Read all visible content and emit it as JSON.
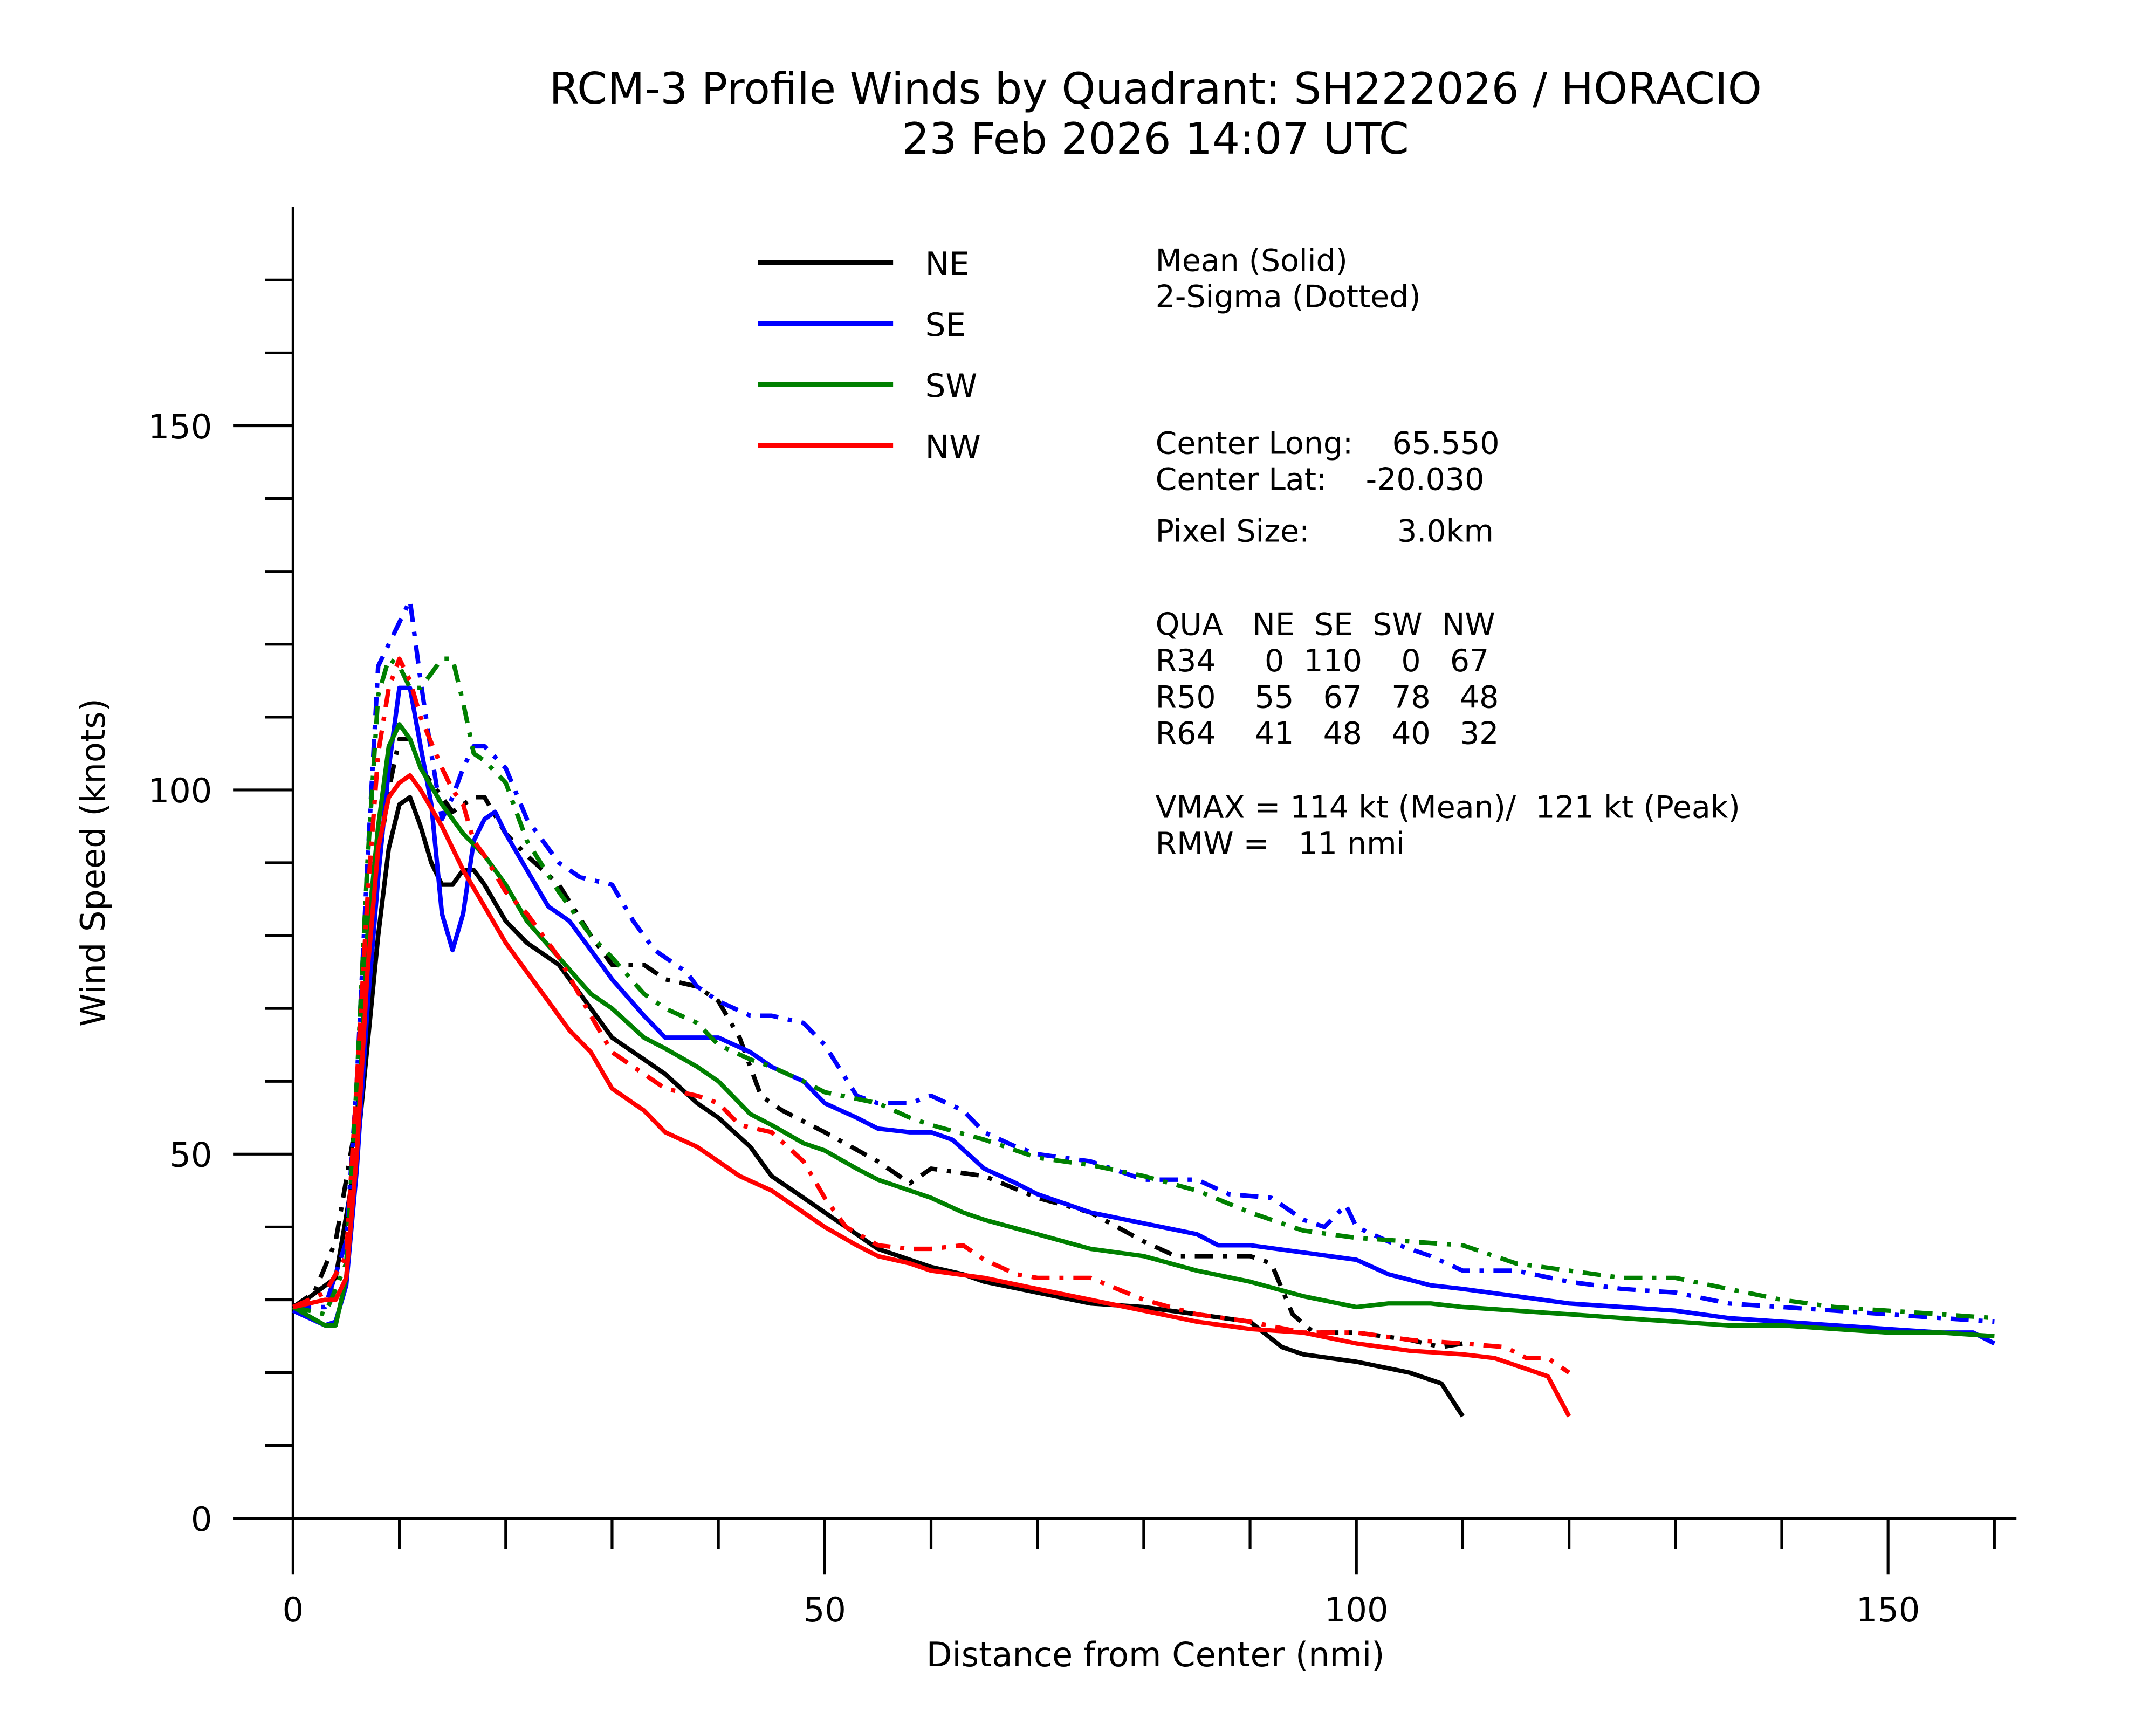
{
  "chart_data": {
    "type": "line",
    "title": "RCM-3 Profile Winds by Quadrant: SH222026 / HORACIO",
    "subtitle": "23 Feb 2026 14:07 UTC",
    "xlabel": "Distance from Center (nmi)",
    "ylabel": "Wind Speed (knots)",
    "xlim": [
      0,
      162
    ],
    "ylim": [
      0,
      180
    ],
    "x_ticks": [
      0,
      50,
      100,
      150
    ],
    "y_ticks": [
      0,
      50,
      100,
      150
    ],
    "grid": false,
    "legend_placement": "top-center",
    "legend_note": [
      "Mean (Solid)",
      "2-Sigma (Dotted)"
    ],
    "series": [
      {
        "name": "NE",
        "style": "mean",
        "color": "#000000",
        "x": [
          0,
          4,
          6,
          8,
          9,
          10,
          11,
          12,
          13,
          14,
          15,
          16,
          17,
          18,
          20,
          22,
          25,
          28,
          30,
          33,
          35,
          38,
          40,
          43,
          45,
          48,
          50,
          53,
          55,
          58,
          60,
          63,
          65,
          70,
          75,
          80,
          85,
          90,
          93,
          95,
          100,
          105,
          108,
          110
        ],
        "y": [
          28.7,
          33,
          50,
          80,
          92,
          98,
          99,
          95,
          90,
          87,
          87,
          89,
          89,
          87,
          82,
          79,
          76,
          70,
          66,
          63,
          61,
          57,
          55,
          51,
          47,
          44,
          42,
          39,
          37,
          35.5,
          34.5,
          33.5,
          32.5,
          31,
          29.5,
          29,
          28,
          27,
          23.5,
          22.5,
          21.5,
          20,
          18.5,
          14
        ]
      },
      {
        "name": "NE",
        "style": "2-sigma",
        "color": "#000000",
        "x": [
          0,
          2,
          4,
          6,
          8,
          9,
          10,
          11,
          12,
          14,
          15,
          17,
          18,
          20,
          22,
          25,
          28,
          30,
          33,
          35,
          38,
          40,
          42,
          44,
          46,
          50,
          55,
          58,
          60,
          65,
          70,
          75,
          80,
          83,
          85,
          90,
          92,
          94,
          96,
          100,
          105,
          108,
          110
        ],
        "y": [
          29,
          31,
          38,
          55,
          90,
          100,
          107,
          107,
          103,
          99,
          97,
          99,
          99,
          94,
          91,
          87,
          80,
          76,
          76,
          74,
          73,
          71,
          66,
          58,
          56,
          53,
          49,
          46,
          48,
          47,
          44,
          42,
          38,
          36,
          36,
          36,
          35,
          28,
          25.5,
          25.5,
          24.5,
          23.5,
          24
        ]
      },
      {
        "name": "SE",
        "style": "mean",
        "color": "#0000ff",
        "x": [
          0,
          3,
          4,
          5,
          6,
          7,
          8,
          9,
          10,
          11,
          12,
          13,
          14,
          15,
          16,
          17,
          18,
          19,
          20,
          22,
          24,
          26,
          28,
          30,
          33,
          35,
          37,
          40,
          43,
          45,
          48,
          50,
          53,
          55,
          58,
          60,
          62,
          65,
          68,
          70,
          75,
          80,
          85,
          87,
          90,
          95,
          100,
          103,
          107,
          110,
          115,
          120,
          125,
          130,
          135,
          140,
          145,
          150,
          155,
          158,
          160
        ],
        "y": [
          28.5,
          26.5,
          27,
          32,
          48,
          70,
          88,
          103,
          114,
          114,
          106,
          98,
          83,
          78,
          83,
          93,
          96,
          97,
          94,
          89,
          84,
          82,
          78,
          74,
          69,
          66,
          66,
          66,
          64,
          62,
          60,
          57,
          55,
          53.5,
          53,
          53,
          52,
          48,
          46,
          44.5,
          42,
          40.5,
          39,
          37.5,
          37.5,
          36.5,
          35.5,
          33.5,
          32,
          31.5,
          30.5,
          29.5,
          29,
          28.5,
          27.5,
          27,
          26.5,
          26,
          25.5,
          25.5,
          24
        ]
      },
      {
        "name": "SE",
        "style": "2-sigma",
        "color": "#0000ff",
        "x": [
          0,
          3,
          5,
          6,
          7,
          8,
          9,
          10,
          11,
          12,
          13,
          14,
          15,
          16,
          17,
          18,
          20,
          22,
          25,
          27,
          30,
          32,
          34,
          37,
          38,
          40,
          43,
          45,
          48,
          50,
          53,
          55,
          58,
          60,
          63,
          65,
          68,
          70,
          75,
          80,
          85,
          88,
          92,
          95,
          97,
          99,
          100,
          103,
          107,
          110,
          115,
          120,
          125,
          130,
          135,
          140,
          145,
          150,
          155,
          160
        ],
        "y": [
          29,
          29,
          38,
          60,
          90,
          117,
          120,
          123,
          126,
          115,
          105,
          96,
          99,
          103,
          106,
          106,
          103,
          96,
          90,
          88,
          87,
          82,
          78,
          75,
          73,
          71,
          69,
          69,
          68,
          65,
          58,
          57,
          57,
          58,
          56,
          53,
          51,
          50,
          49,
          46.5,
          46.5,
          44.5,
          44,
          41,
          40,
          43,
          40,
          38,
          36,
          34,
          34,
          32.5,
          31.5,
          31,
          29.5,
          29,
          28.5,
          28,
          27.5,
          27
        ]
      },
      {
        "name": "SW",
        "style": "mean",
        "color": "#008000",
        "x": [
          0,
          3,
          4,
          5,
          6,
          7,
          8,
          9,
          10,
          11,
          12,
          14,
          16,
          18,
          20,
          22,
          25,
          28,
          30,
          33,
          35,
          38,
          40,
          43,
          45,
          48,
          50,
          53,
          55,
          58,
          60,
          63,
          65,
          70,
          75,
          80,
          85,
          90,
          95,
          100,
          103,
          107,
          110,
          115,
          120,
          125,
          130,
          135,
          140,
          145,
          150,
          155,
          160
        ],
        "y": [
          29,
          26.5,
          26.5,
          33,
          50,
          80,
          95,
          106,
          109,
          107,
          103,
          98,
          94,
          91,
          87,
          82,
          77,
          72,
          70,
          66,
          64.5,
          62,
          60,
          55.5,
          54,
          51.5,
          50.5,
          48,
          46.5,
          45,
          44,
          42,
          41,
          39,
          37,
          36,
          34,
          32.5,
          30.5,
          29,
          29.5,
          29.5,
          29,
          28.5,
          28,
          27.5,
          27,
          26.5,
          26.5,
          26,
          25.5,
          25.5,
          25
        ]
      },
      {
        "name": "SW",
        "style": "2-sigma",
        "color": "#008000",
        "x": [
          0,
          3,
          5,
          6,
          7,
          8,
          9,
          10,
          11,
          12,
          13,
          14,
          15,
          16,
          17,
          18,
          20,
          22,
          25,
          28,
          30,
          33,
          35,
          38,
          40,
          43,
          45,
          48,
          50,
          55,
          58,
          60,
          65,
          70,
          75,
          80,
          85,
          90,
          95,
          100,
          105,
          110,
          115,
          120,
          125,
          130,
          135,
          140,
          145,
          150,
          155,
          160
        ],
        "y": [
          29,
          28,
          35,
          60,
          90,
          113,
          118,
          117,
          114,
          114,
          116,
          118,
          118,
          112,
          105,
          104,
          101,
          93,
          86,
          80,
          77,
          72,
          70,
          68,
          65,
          63,
          62,
          60,
          58.5,
          57,
          55,
          54,
          52,
          49.5,
          48.5,
          47,
          45,
          42,
          39.5,
          38.5,
          38,
          37.5,
          35,
          34,
          33,
          33,
          31.5,
          30,
          29,
          28.5,
          28,
          27.5
        ]
      },
      {
        "name": "NW",
        "style": "mean",
        "color": "#ff0000",
        "x": [
          0,
          3,
          4,
          5,
          6,
          7,
          8,
          9,
          10,
          11,
          12,
          14,
          16,
          18,
          20,
          22,
          24,
          26,
          28,
          30,
          32,
          33,
          35,
          38,
          40,
          42,
          45,
          48,
          50,
          53,
          55,
          58,
          60,
          65,
          70,
          75,
          80,
          85,
          90,
          95,
          100,
          105,
          110,
          113,
          115,
          118,
          120
        ],
        "y": [
          29,
          30,
          30,
          33,
          50,
          75,
          92,
          99,
          101,
          102,
          100,
          95,
          89,
          84,
          79,
          75,
          71,
          67,
          64,
          59,
          57,
          56,
          53,
          51,
          49,
          47,
          45,
          42,
          40,
          37.5,
          36,
          35,
          34,
          33,
          31.5,
          30,
          28.5,
          27,
          26,
          25.5,
          24,
          23,
          22.5,
          22,
          21,
          19.5,
          14
        ]
      },
      {
        "name": "NW",
        "style": "2-sigma",
        "color": "#ff0000",
        "x": [
          0,
          3,
          5,
          6,
          7,
          8,
          9,
          10,
          11,
          12,
          14,
          15,
          16,
          17,
          18,
          20,
          22,
          25,
          28,
          30,
          33,
          35,
          38,
          40,
          42,
          45,
          48,
          50,
          52,
          55,
          58,
          60,
          63,
          65,
          68,
          70,
          75,
          80,
          85,
          90,
          95,
          100,
          105,
          110,
          114,
          116,
          118,
          120
        ],
        "y": [
          29,
          31,
          36,
          60,
          85,
          105,
          114,
          118,
          115,
          110,
          103,
          100,
          98,
          93,
          91,
          86,
          83,
          77,
          69,
          64,
          61,
          59,
          58,
          57,
          54,
          53,
          49,
          44,
          40,
          37.5,
          37,
          37,
          37.5,
          35.5,
          33.5,
          33,
          33,
          30,
          28,
          27,
          25.5,
          25.5,
          24.5,
          24,
          23.5,
          22,
          22,
          20
        ]
      }
    ],
    "legend": [
      {
        "label": "NE",
        "color": "#000000"
      },
      {
        "label": "SE",
        "color": "#0000ff"
      },
      {
        "label": "SW",
        "color": "#008000"
      },
      {
        "label": "NW",
        "color": "#ff0000"
      }
    ],
    "info": {
      "center_long": "Center Long:    65.550",
      "center_lat": "Center Lat:    -20.030",
      "pixel_size": "Pixel Size:         3.0km",
      "table_header": "QUA   NE  SE  SW  NW",
      "r34": "R34     0  110    0   67",
      "r50": "R50    55   67   78   48",
      "r64": "R64    41   48   40   32",
      "vmax": "VMAX = 114 kt (Mean)/  121 kt (Peak)",
      "rmw": "RMW =   11 nmi"
    }
  }
}
